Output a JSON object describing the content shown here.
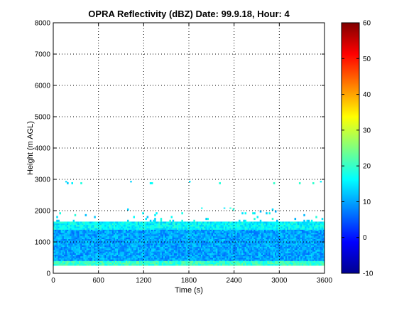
{
  "chart_data": {
    "type": "heatmap",
    "title": "OPRA Reflectivity (dBZ)  Date: 99.9.18, Hour: 4",
    "xlabel": "Time (s)",
    "ylabel": "Height (m AGL)",
    "xlim": [
      0,
      3600
    ],
    "ylim": [
      0,
      8000
    ],
    "x_ticks": [
      "0",
      "600",
      "1200",
      "1800",
      "2400",
      "3000",
      "3600"
    ],
    "y_ticks": [
      "0",
      "1000",
      "2000",
      "3000",
      "4000",
      "5000",
      "6000",
      "7000",
      "8000"
    ],
    "grid": true,
    "colorbar": {
      "colormap": "jet",
      "range": [
        -10,
        60
      ],
      "ticks": [
        "-10",
        "0",
        "10",
        "20",
        "30",
        "40",
        "50",
        "60"
      ]
    },
    "layers": [
      {
        "height_range": [
          250,
          400
        ],
        "dbz": 20
      },
      {
        "height_range": [
          400,
          1400
        ],
        "dbz": 10
      },
      {
        "height_range": [
          1400,
          1650
        ],
        "dbz": 16
      },
      {
        "height_range": [
          1650,
          2100
        ],
        "dbz": 15,
        "note": "scattered"
      },
      {
        "height_range": [
          2850,
          2950
        ],
        "dbz": 16,
        "note": "scattered"
      }
    ]
  }
}
